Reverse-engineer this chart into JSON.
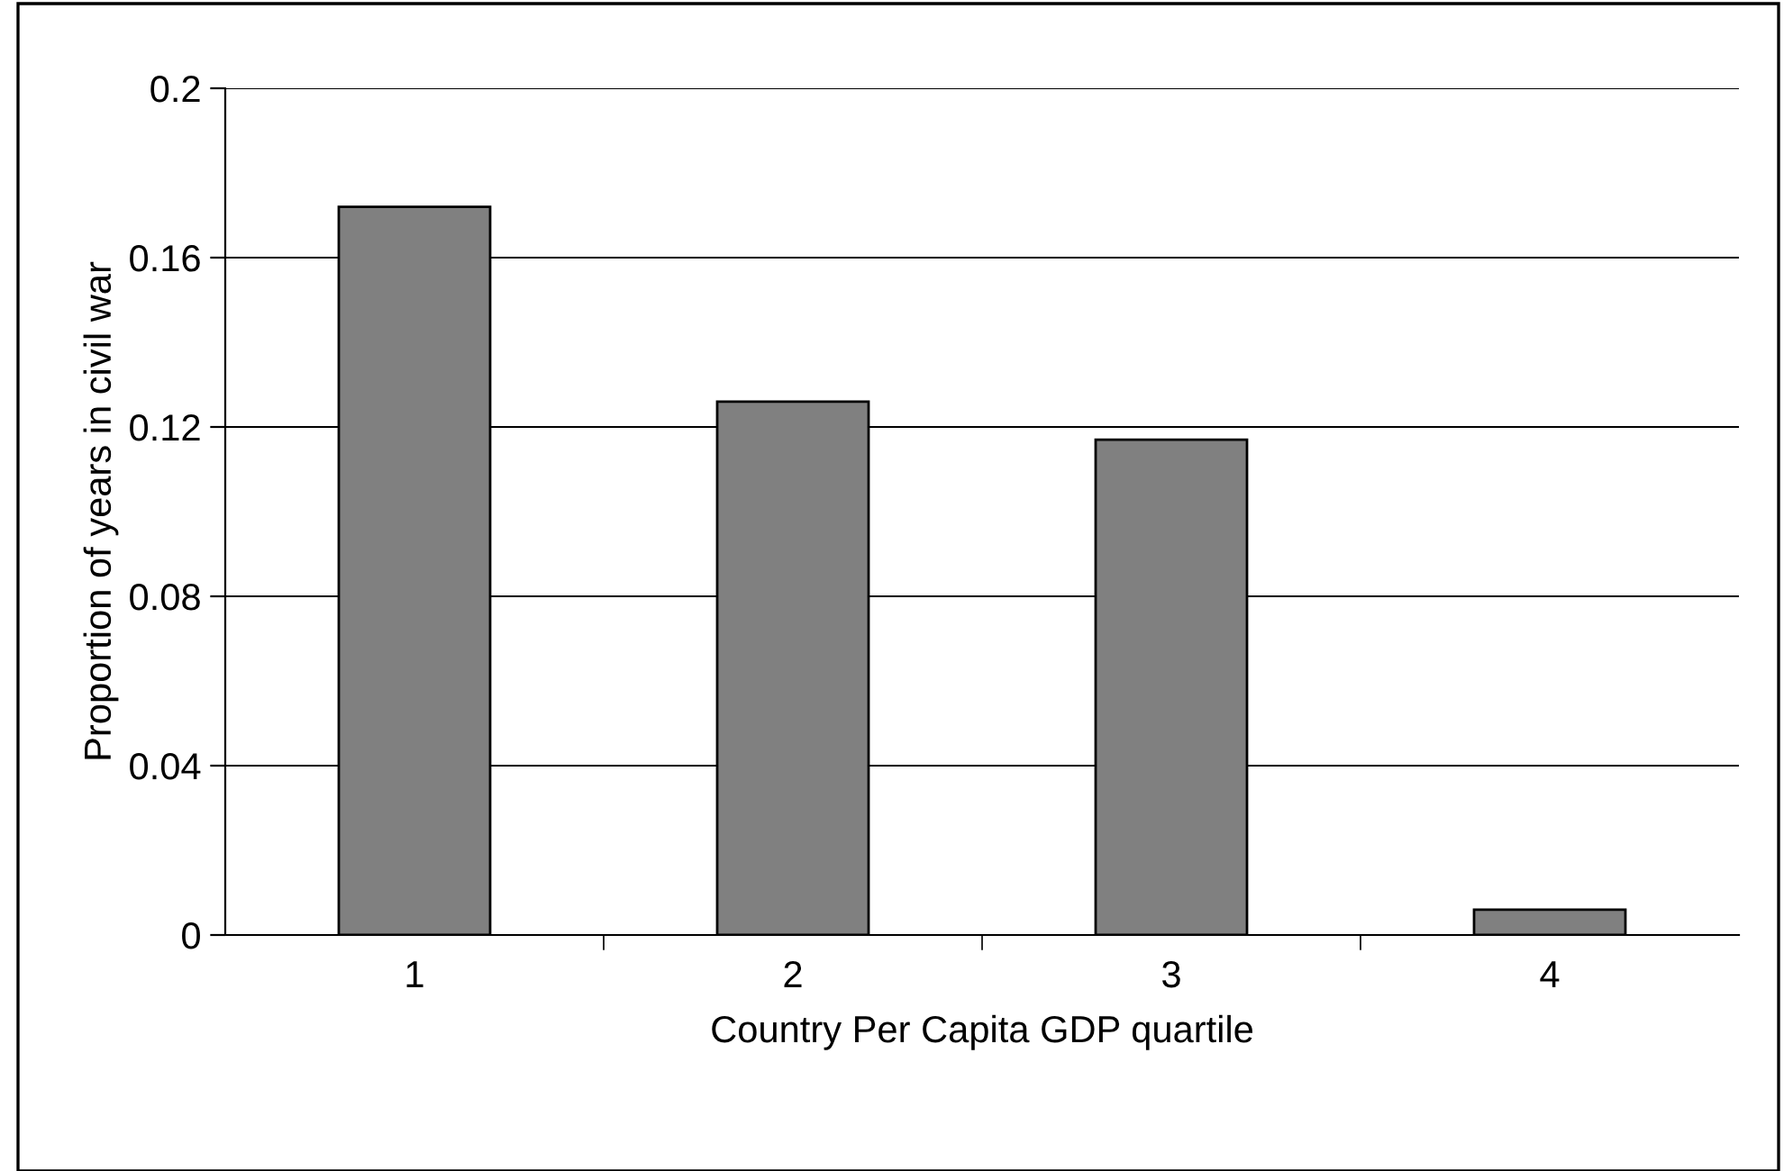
{
  "chart_data": {
    "type": "bar",
    "xlabel": "Country Per Capita GDP quartile",
    "ylabel": "Proportion of years in civil war",
    "categories": [
      "1",
      "2",
      "3",
      "4"
    ],
    "values": [
      0.172,
      0.126,
      0.117,
      0.006
    ],
    "color": "#808080",
    "ylim": [
      0,
      0.2
    ],
    "yticks": [
      0,
      0.04,
      0.08,
      0.12,
      0.16,
      0.2
    ],
    "grid": "y",
    "legend": false
  }
}
